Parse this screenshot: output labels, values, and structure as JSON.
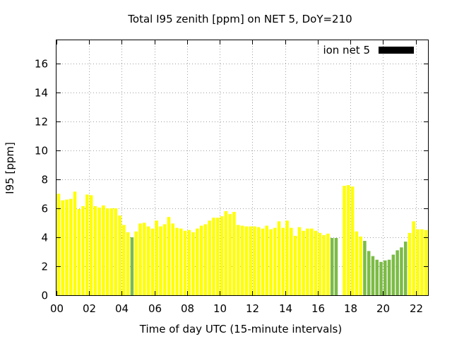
{
  "chart_data": {
    "type": "bar",
    "title": "Total I95 zenith [ppm] on NET 5, DoY=210",
    "xlabel": "Time of day UTC (15-minute intervals)",
    "ylabel": "I95 [ppm]",
    "xlim": [
      0,
      22.75
    ],
    "ylim": [
      0,
      17.6
    ],
    "x_ticks": [
      "00",
      "02",
      "04",
      "06",
      "08",
      "10",
      "12",
      "14",
      "16",
      "18",
      "20",
      "22"
    ],
    "y_ticks": [
      "0",
      "2",
      "4",
      "6",
      "8",
      "10",
      "12",
      "14",
      "16"
    ],
    "grid": true,
    "legend": {
      "position": "top-right",
      "entries": [
        {
          "label": "ion net 5",
          "color": "#000000"
        }
      ]
    },
    "colors": {
      "high": "#ffff00",
      "low": "#7cbb46"
    },
    "bar_width_hours": 0.25,
    "series": [
      {
        "x": [
          0.0,
          0.25,
          0.5,
          0.75,
          1.0,
          1.25,
          1.5,
          1.75,
          2.0,
          2.25,
          2.5,
          2.75,
          3.0,
          3.25,
          3.5,
          3.75,
          4.0,
          4.25,
          4.5,
          4.75,
          5.0,
          5.25,
          5.5,
          5.75,
          6.0,
          6.25,
          6.5,
          6.75,
          7.0,
          7.25,
          7.5,
          7.75,
          8.0,
          8.25,
          8.5,
          8.75,
          9.0,
          9.25,
          9.5,
          9.75,
          10.0,
          10.25,
          10.5,
          10.75,
          11.0,
          11.25,
          11.5,
          11.75,
          12.0,
          12.25,
          12.5,
          12.75,
          13.0,
          13.25,
          13.5,
          13.75,
          14.0,
          14.25,
          14.5,
          14.75,
          15.0,
          15.25,
          15.5,
          15.75,
          16.0,
          16.25,
          16.5,
          16.75,
          17.0,
          17.25,
          17.5,
          17.75,
          18.0,
          18.25,
          18.5,
          18.75,
          19.0,
          19.25,
          19.5,
          19.75,
          20.0,
          20.25,
          20.5,
          20.75,
          21.0,
          21.25,
          21.5,
          21.75,
          22.0,
          22.25,
          22.5
        ],
        "values": [
          7.0,
          6.55,
          6.6,
          6.65,
          7.15,
          5.95,
          6.15,
          6.95,
          6.9,
          6.15,
          6.05,
          6.2,
          6.0,
          6.0,
          6.0,
          5.5,
          4.85,
          4.35,
          4.0,
          4.4,
          4.95,
          5.0,
          4.75,
          4.6,
          5.15,
          4.75,
          4.9,
          5.4,
          4.95,
          4.65,
          4.6,
          4.45,
          4.5,
          4.35,
          4.6,
          4.8,
          4.9,
          5.15,
          5.35,
          5.35,
          5.45,
          5.8,
          5.6,
          5.75,
          4.85,
          4.8,
          4.75,
          4.75,
          4.75,
          4.7,
          4.6,
          4.8,
          4.55,
          4.65,
          5.1,
          4.65,
          5.15,
          4.65,
          4.1,
          4.7,
          4.45,
          4.6,
          4.6,
          4.45,
          4.3,
          4.15,
          4.25,
          3.95,
          3.95,
          0,
          7.55,
          7.6,
          7.5,
          4.4,
          4.05,
          3.75,
          3.05,
          2.7,
          2.45,
          2.3,
          2.4,
          2.45,
          2.8,
          3.1,
          3.3,
          3.7,
          4.3,
          5.1,
          4.55,
          4.55,
          4.5
        ],
        "colors": [
          "high",
          "high",
          "high",
          "high",
          "high",
          "high",
          "high",
          "high",
          "high",
          "high",
          "high",
          "high",
          "high",
          "high",
          "high",
          "high",
          "high",
          "high",
          "low",
          "high",
          "high",
          "high",
          "high",
          "high",
          "high",
          "high",
          "high",
          "high",
          "high",
          "high",
          "high",
          "high",
          "high",
          "high",
          "high",
          "high",
          "high",
          "high",
          "high",
          "high",
          "high",
          "high",
          "high",
          "high",
          "high",
          "high",
          "high",
          "high",
          "high",
          "high",
          "high",
          "high",
          "high",
          "high",
          "high",
          "high",
          "high",
          "high",
          "high",
          "high",
          "high",
          "high",
          "high",
          "high",
          "high",
          "high",
          "high",
          "low",
          "low",
          "high",
          "high",
          "high",
          "high",
          "high",
          "high",
          "low",
          "low",
          "low",
          "low",
          "low",
          "low",
          "low",
          "low",
          "low",
          "low",
          "low",
          "high",
          "high",
          "high",
          "high",
          "high"
        ]
      }
    ]
  }
}
